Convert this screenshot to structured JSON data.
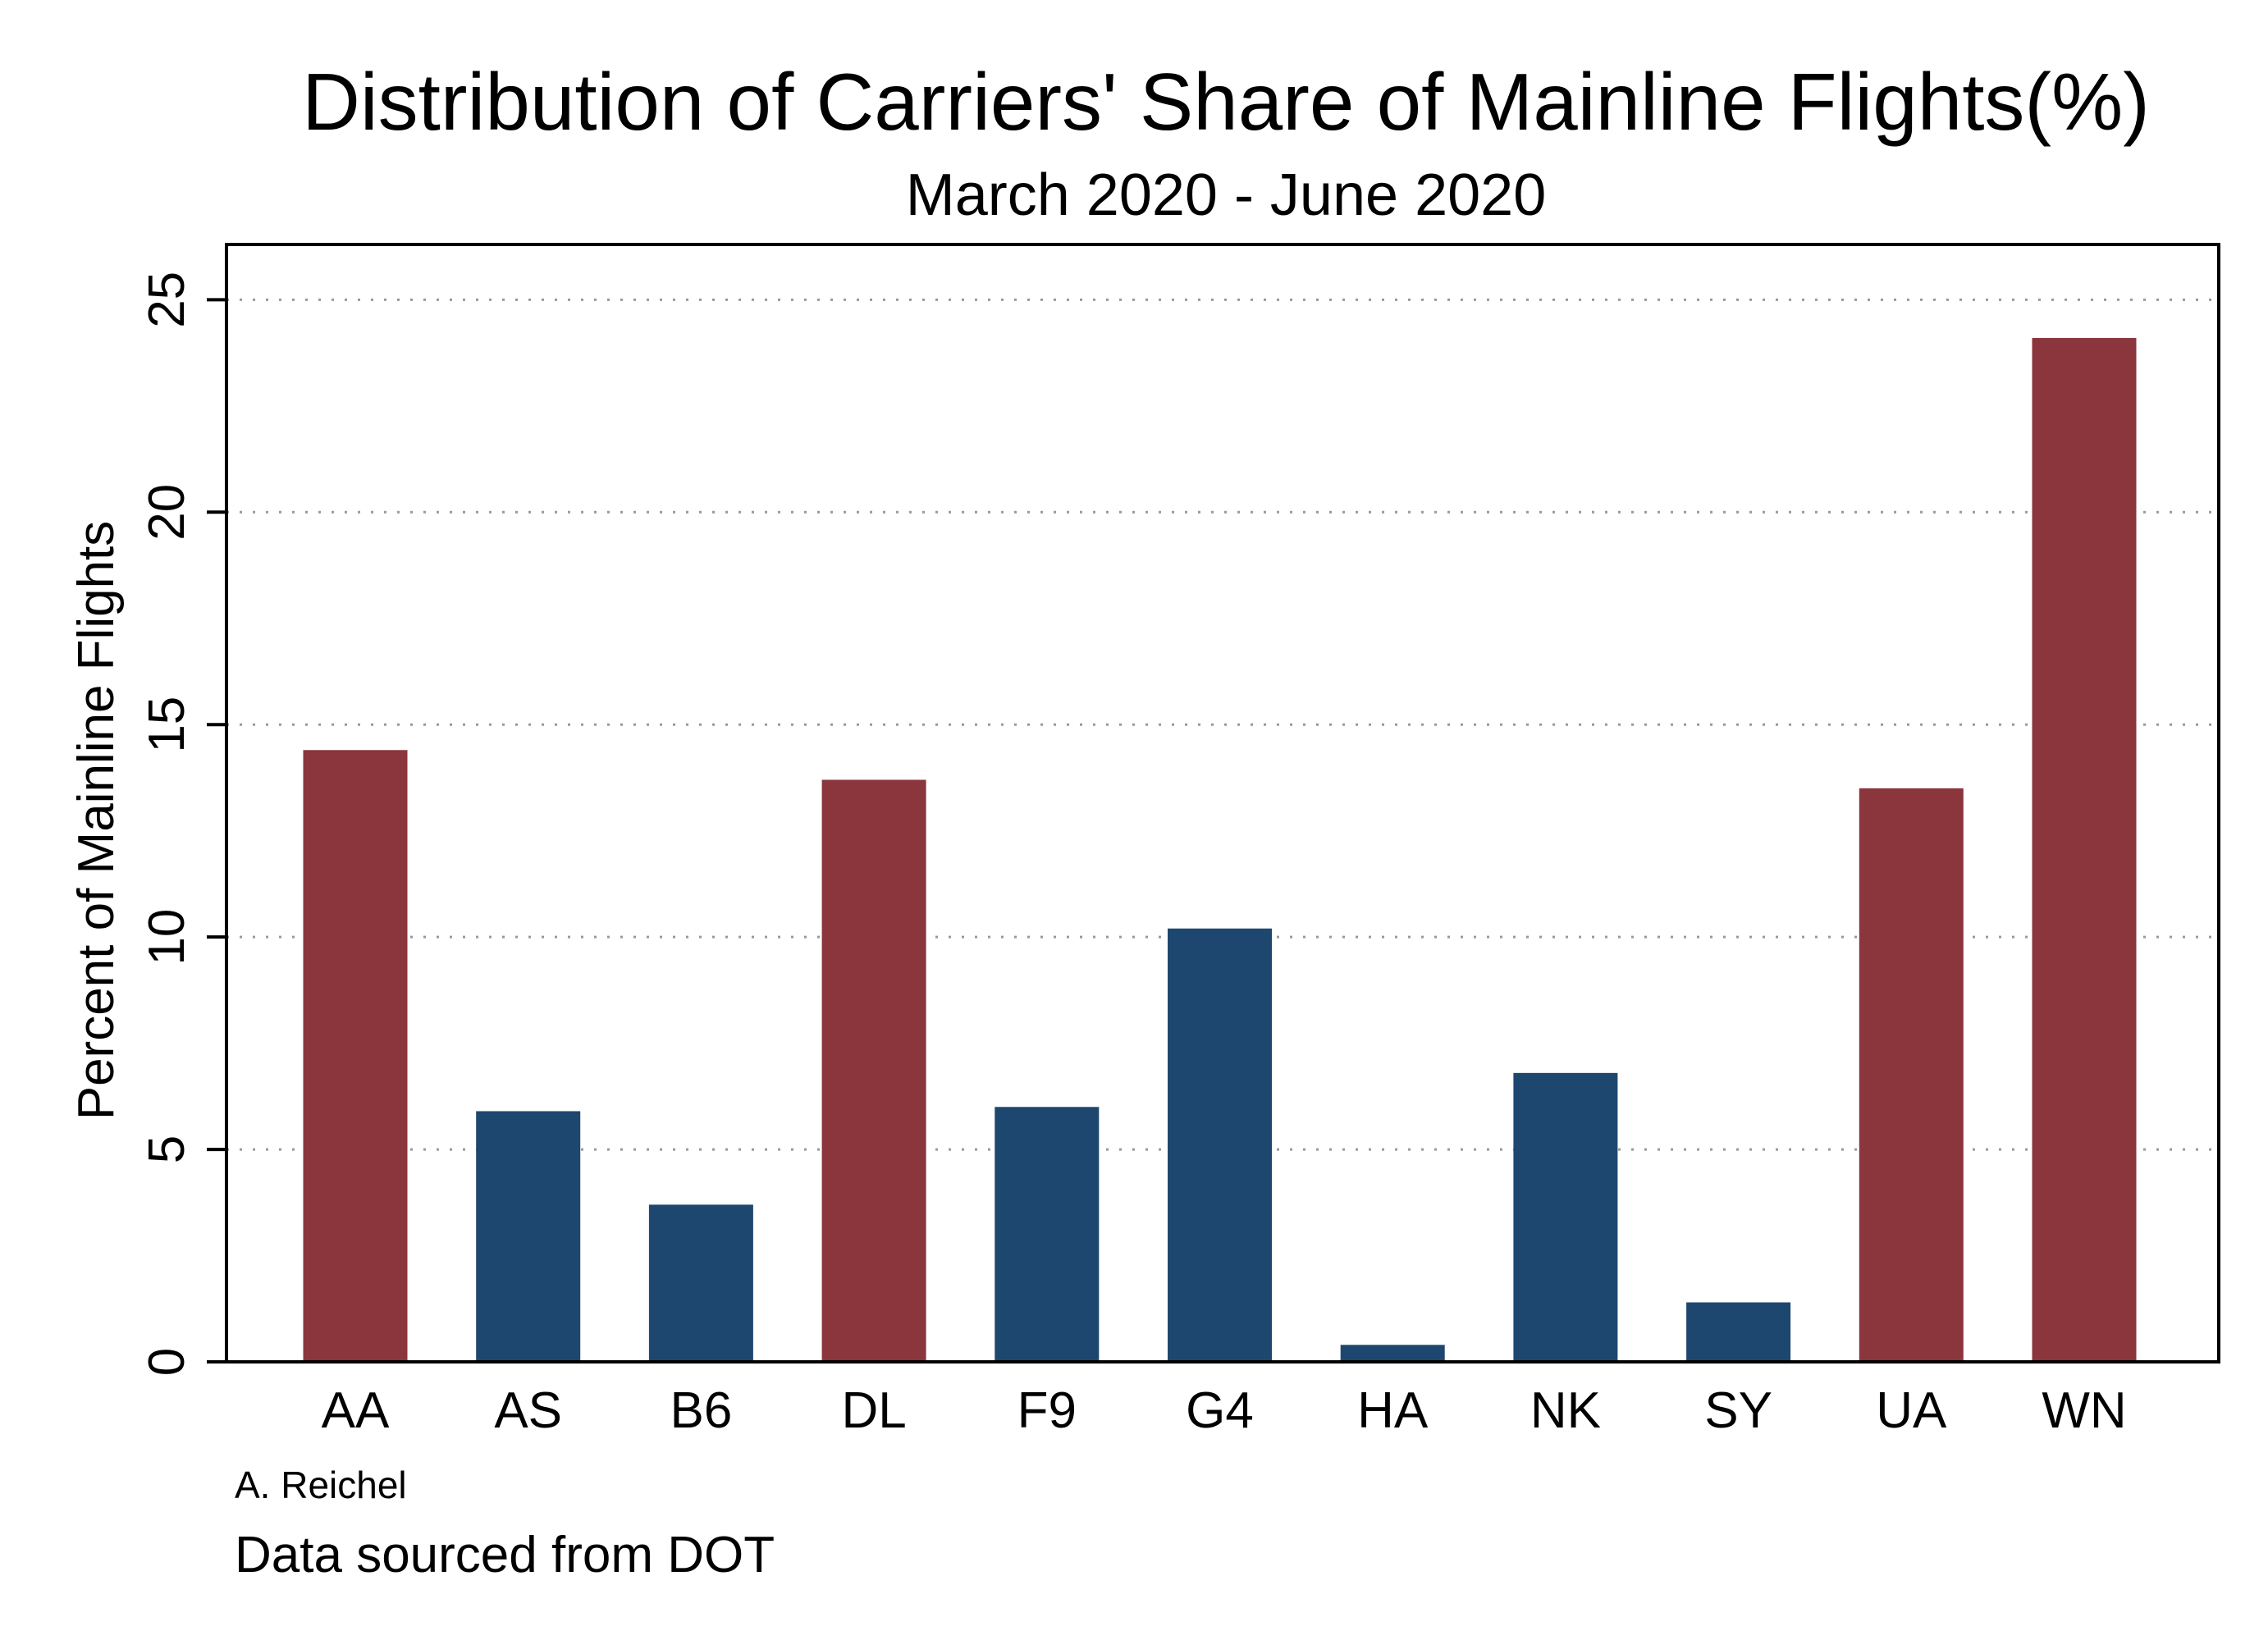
{
  "chart_data": {
    "type": "bar",
    "title": "Distribution of Carriers' Share of Mainline Flights(%)",
    "subtitle": "March 2020 - June 2020",
    "xlabel": "",
    "ylabel": "Percent of Mainline Flights",
    "categories": [
      "AA",
      "AS",
      "B6",
      "DL",
      "F9",
      "G4",
      "HA",
      "NK",
      "SY",
      "UA",
      "WN"
    ],
    "values": [
      14.4,
      5.9,
      3.7,
      13.7,
      6.0,
      10.2,
      0.4,
      6.8,
      1.4,
      13.5,
      24.1
    ],
    "colors": [
      "#8b353d",
      "#1e476f",
      "#1e476f",
      "#8b353d",
      "#1e476f",
      "#1e476f",
      "#1e476f",
      "#1e476f",
      "#1e476f",
      "#8b353d",
      "#8b353d"
    ],
    "ylim": [
      0,
      26.3
    ],
    "yticks": [
      0,
      5,
      10,
      15,
      20,
      25
    ],
    "grid": true,
    "legend": "none"
  },
  "notes": {
    "author": "A. Reichel",
    "source": "Data sourced from DOT"
  },
  "colors": {
    "major_carrier": "#8b353d",
    "other_carrier": "#1e476f",
    "gridline": "#999999",
    "frame": "#000000"
  }
}
